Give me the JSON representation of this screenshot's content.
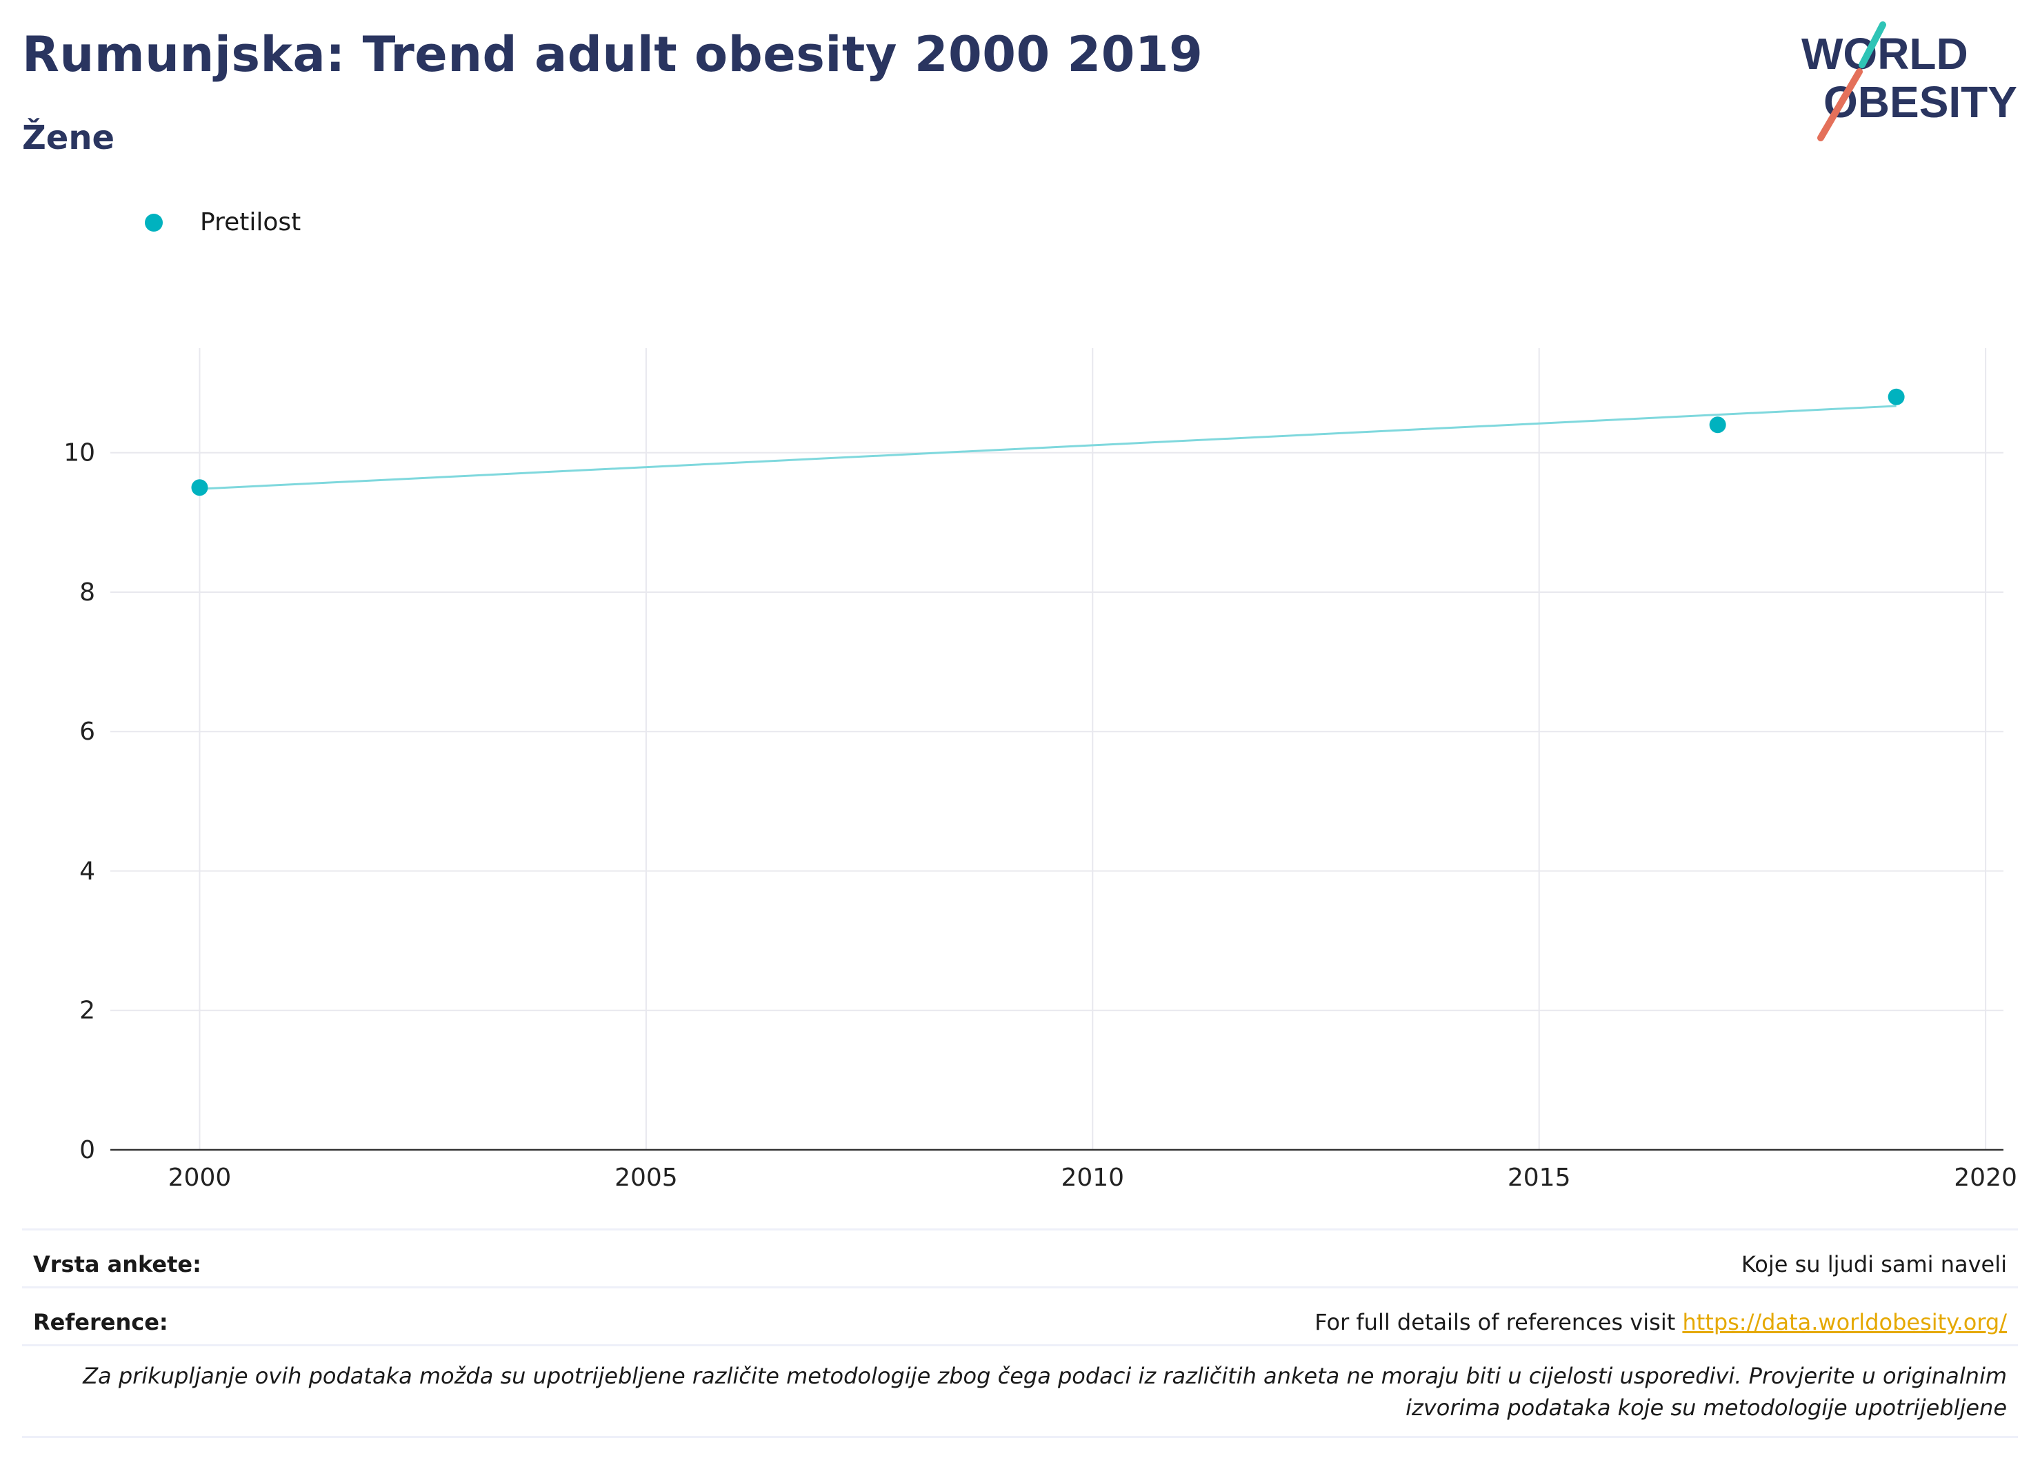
{
  "header": {
    "title": "Rumunjska: Trend adult obesity 2000 2019",
    "subtitle": "Žene"
  },
  "logo": {
    "line1": "WORLD",
    "line2": "OBESITY",
    "colors": {
      "text": "#2a3560",
      "slash_teal": "#2ec4b6",
      "slash_coral": "#e4705a"
    }
  },
  "legend": {
    "items": [
      {
        "label": "Pretilost",
        "color": "#00b2bf"
      }
    ]
  },
  "chart_data": {
    "type": "scatter",
    "title": "Rumunjska: Trend adult obesity 2000 2019",
    "subtitle": "Žene",
    "xlabel": "",
    "ylabel": "",
    "xlim": [
      1999,
      2020.2
    ],
    "ylim": [
      0,
      11.5
    ],
    "xticks": [
      2000,
      2005,
      2010,
      2015,
      2020
    ],
    "yticks": [
      0,
      2,
      4,
      6,
      8,
      10
    ],
    "grid": true,
    "legend_position": "top-left",
    "series": [
      {
        "name": "Pretilost",
        "color": "#00b2bf",
        "points": [
          {
            "x": 2000,
            "y": 9.5
          },
          {
            "x": 2017,
            "y": 10.4
          },
          {
            "x": 2019,
            "y": 10.8
          }
        ]
      }
    ],
    "trendline": {
      "color": "#7fd8dd",
      "points": [
        {
          "x": 2000,
          "y": 9.48
        },
        {
          "x": 2019,
          "y": 10.67
        }
      ]
    }
  },
  "footer": {
    "survey_label": "Vrsta ankete:",
    "survey_value": "Koje su ljudi sami naveli",
    "reference_label": "Reference:",
    "reference_text": "For full details of references visit ",
    "reference_link": "https://data.worldobesity.org/",
    "note": "Za prikupljanje ovih podataka možda su upotrijebljene različite metodologije zbog čega podaci iz različitih anketa ne moraju biti u cijelosti usporedivi. Provjerite u originalnim izvorima podataka koje su metodologije upotrijebljene"
  }
}
